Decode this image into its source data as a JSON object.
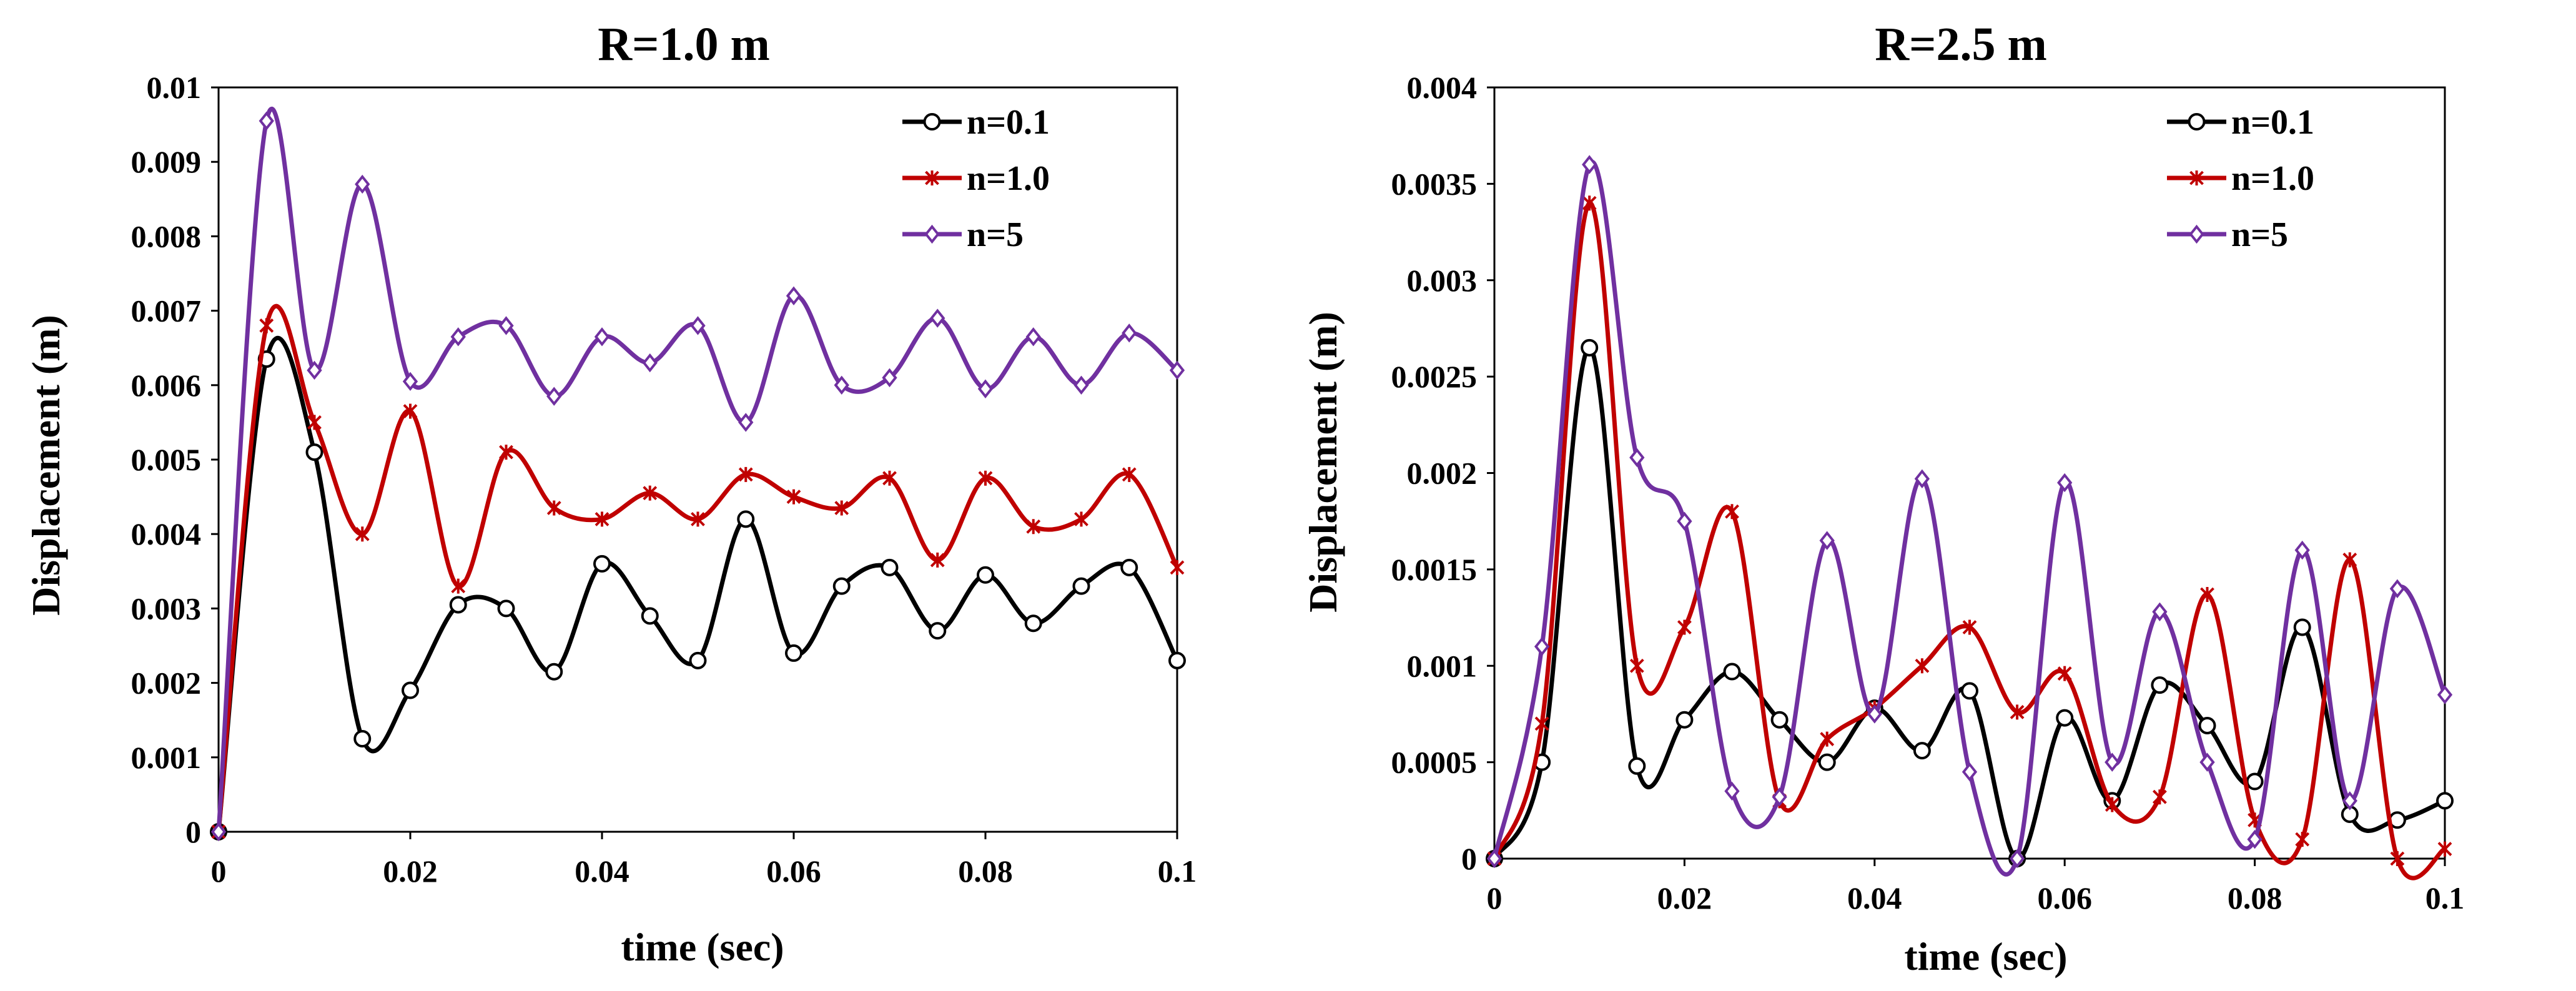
{
  "chart_data": [
    {
      "type": "line",
      "title": "R=1.0 m",
      "xlabel": "time (sec)",
      "ylabel": "Displacement (m)",
      "xlim": [
        0,
        0.1
      ],
      "ylim": [
        0,
        0.01
      ],
      "xticks": [
        0,
        0.02,
        0.04,
        0.06,
        0.08,
        0.1
      ],
      "xtick_labels": [
        "0",
        "0.02",
        "0.04",
        "0.06",
        "0.08",
        "0.1"
      ],
      "yticks": [
        0,
        0.001,
        0.002,
        0.003,
        0.004,
        0.005,
        0.006,
        0.007,
        0.008,
        0.009,
        0.01
      ],
      "ytick_labels": [
        "0",
        "0.001",
        "0.002",
        "0.003",
        "0.004",
        "0.005",
        "0.006",
        "0.007",
        "0.008",
        "0.009",
        "0.01"
      ],
      "grid": false,
      "legend_position": "top-right",
      "x": [
        0,
        0.005,
        0.01,
        0.015,
        0.02,
        0.025,
        0.03,
        0.035,
        0.04,
        0.045,
        0.05,
        0.055,
        0.06,
        0.065,
        0.07,
        0.075,
        0.08,
        0.085,
        0.09,
        0.095,
        0.1
      ],
      "series": [
        {
          "name": "n=0.1",
          "color": "#000000",
          "marker": "circle",
          "values": [
            0,
            0.00635,
            0.0051,
            0.00125,
            0.0019,
            0.00305,
            0.003,
            0.00215,
            0.0036,
            0.0029,
            0.0023,
            0.0042,
            0.0024,
            0.0033,
            0.00355,
            0.0027,
            0.00345,
            0.0028,
            0.0033,
            0.00355,
            0.0023
          ]
        },
        {
          "name": "n=1.0",
          "color": "#c00000",
          "marker": "x",
          "values": [
            0,
            0.0068,
            0.0055,
            0.004,
            0.00565,
            0.0033,
            0.0051,
            0.00435,
            0.0042,
            0.00455,
            0.0042,
            0.0048,
            0.0045,
            0.00435,
            0.00475,
            0.00365,
            0.00475,
            0.0041,
            0.0042,
            0.0048,
            0.00355
          ]
        },
        {
          "name": "n=5",
          "color": "#7030a0",
          "marker": "diamond",
          "values": [
            0,
            0.00955,
            0.0062,
            0.0087,
            0.00605,
            0.00665,
            0.0068,
            0.00585,
            0.00665,
            0.0063,
            0.0068,
            0.0055,
            0.0072,
            0.006,
            0.0061,
            0.0069,
            0.00595,
            0.00665,
            0.006,
            0.0067,
            0.0062
          ]
        }
      ]
    },
    {
      "type": "line",
      "title": "R=2.5 m",
      "xlabel": "time (sec)",
      "ylabel": "Displacement (m)",
      "xlim": [
        0,
        0.1
      ],
      "ylim": [
        0,
        0.004
      ],
      "xticks": [
        0,
        0.02,
        0.04,
        0.06,
        0.08,
        0.1
      ],
      "xtick_labels": [
        "0",
        "0.02",
        "0.04",
        "0.06",
        "0.08",
        "0.1"
      ],
      "yticks": [
        0,
        0.0005,
        0.001,
        0.0015,
        0.002,
        0.0025,
        0.003,
        0.0035,
        0.004
      ],
      "ytick_labels": [
        "0",
        "0.0005",
        "0.001",
        "0.0015",
        "0.002",
        "0.0025",
        "0.003",
        "0.0035",
        "0.004"
      ],
      "grid": false,
      "legend_position": "top-right",
      "x": [
        0,
        0.005,
        0.01,
        0.015,
        0.02,
        0.025,
        0.03,
        0.035,
        0.04,
        0.045,
        0.05,
        0.055,
        0.06,
        0.065,
        0.07,
        0.075,
        0.08,
        0.085,
        0.09,
        0.095,
        0.1
      ],
      "series": [
        {
          "name": "n=0.1",
          "color": "#000000",
          "marker": "circle",
          "values": [
            0,
            0.0005,
            0.00265,
            0.00048,
            0.00072,
            0.00097,
            0.00072,
            0.0005,
            0.00078,
            0.00056,
            0.00087,
            0.0,
            0.00073,
            0.0003,
            0.0009,
            0.00069,
            0.0004,
            0.0012,
            0.00023,
            0.0002,
            0.0003
          ]
        },
        {
          "name": "n=1.0",
          "color": "#c00000",
          "marker": "x",
          "values": [
            0,
            0.0007,
            0.0034,
            0.001,
            0.0012,
            0.0018,
            0.0003,
            0.00062,
            0.00078,
            0.001,
            0.0012,
            0.00076,
            0.00096,
            0.00028,
            0.00032,
            0.00137,
            0.0002,
            0.0001,
            0.00155,
            0.0,
            5e-05
          ]
        },
        {
          "name": "n=5",
          "color": "#7030a0",
          "marker": "diamond",
          "values": [
            0,
            0.0011,
            0.0036,
            0.00208,
            0.00175,
            0.00035,
            0.00032,
            0.00165,
            0.00075,
            0.00197,
            0.00045,
            0.0,
            0.00195,
            0.0005,
            0.00128,
            0.0005,
            0.0001,
            0.0016,
            0.0003,
            0.0014,
            0.00085
          ]
        }
      ]
    }
  ]
}
